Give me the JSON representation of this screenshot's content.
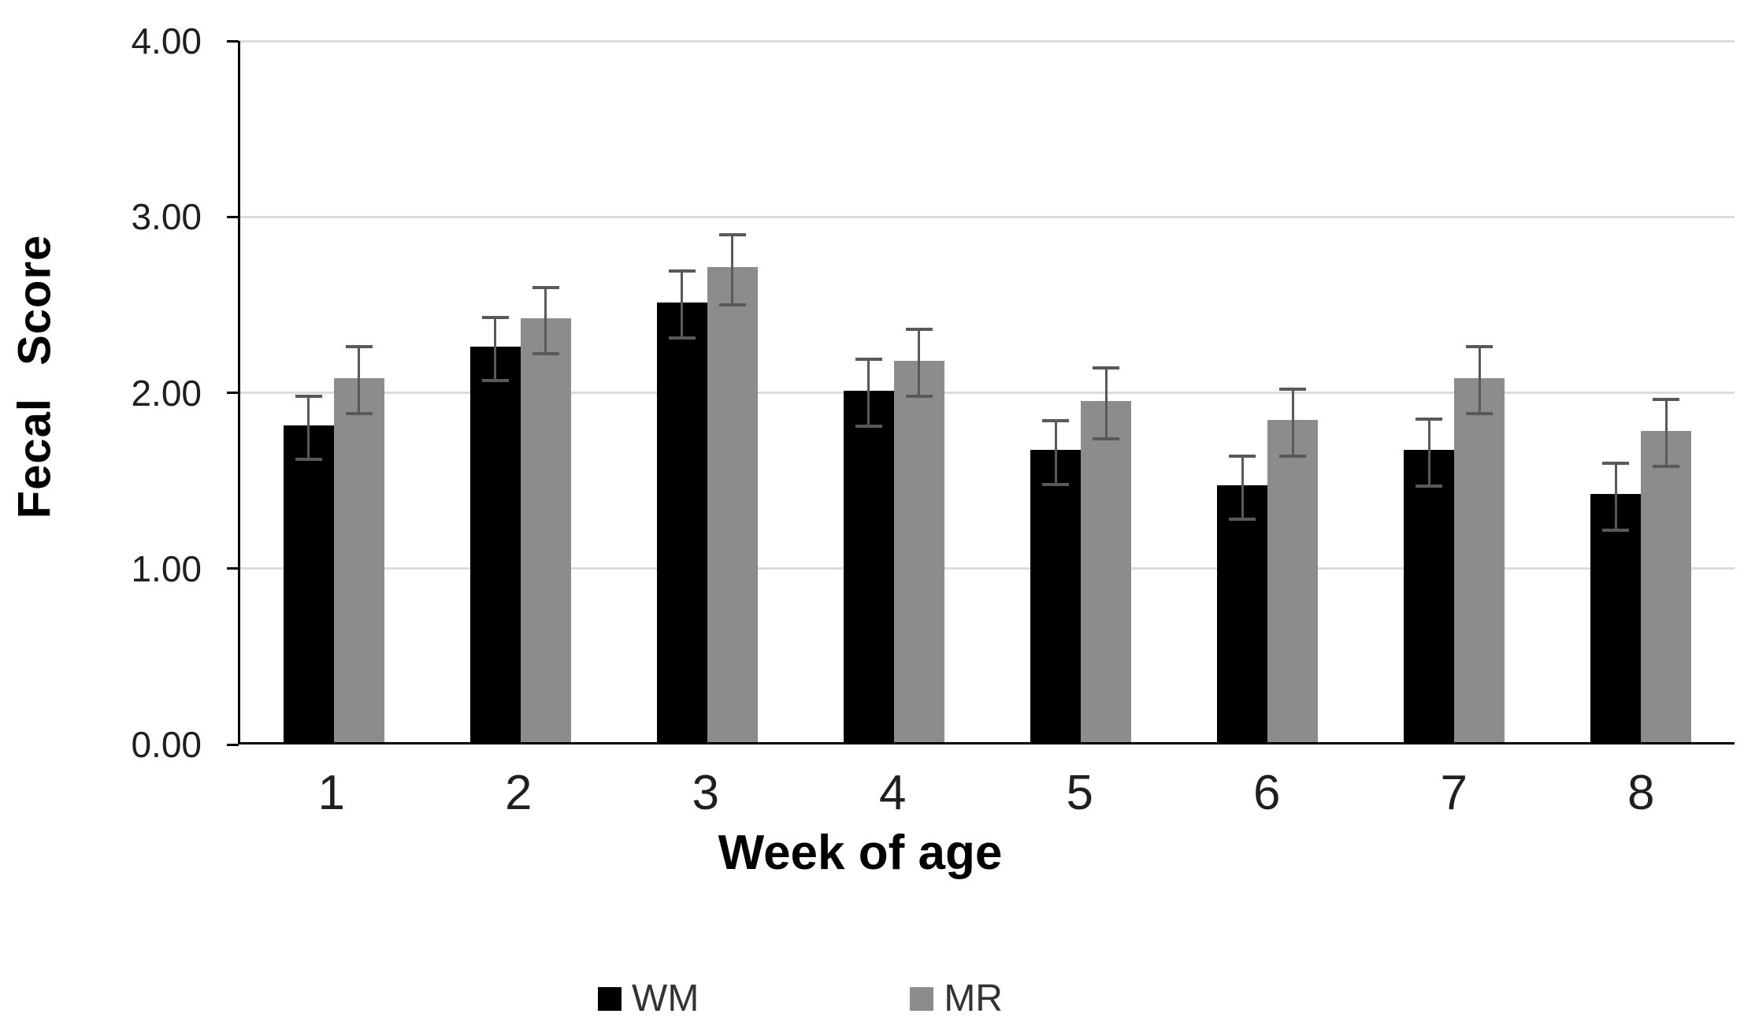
{
  "chart_data": {
    "type": "bar",
    "title": "",
    "xlabel": "Week of age",
    "ylabel": "Fecal Score",
    "categories": [
      "1",
      "2",
      "3",
      "4",
      "5",
      "6",
      "7",
      "8"
    ],
    "series": [
      {
        "name": "WM",
        "color": "#000000",
        "values": [
          1.8,
          2.25,
          2.5,
          2.0,
          1.66,
          1.46,
          1.66,
          1.41
        ],
        "errors": [
          0.18,
          0.18,
          0.19,
          0.19,
          0.18,
          0.18,
          0.19,
          0.19
        ]
      },
      {
        "name": "MR",
        "color": "#8C8C8C",
        "values": [
          2.07,
          2.41,
          2.7,
          2.17,
          1.94,
          1.83,
          2.07,
          1.77
        ],
        "errors": [
          0.19,
          0.19,
          0.2,
          0.19,
          0.2,
          0.19,
          0.19,
          0.19
        ]
      }
    ],
    "ylim": [
      0,
      4
    ],
    "yticks": [
      "0.00",
      "1.00",
      "2.00",
      "3.00",
      "4.00"
    ],
    "ytick_values": [
      0,
      1,
      2,
      3,
      4
    ],
    "grid": "horizontal",
    "legend_position": "bottom",
    "error_bars": true,
    "colors": {
      "error_bar": "#595959",
      "gridline": "#DCDCDC",
      "axis": "#000000",
      "tick_text": "#1f1f1f"
    }
  }
}
